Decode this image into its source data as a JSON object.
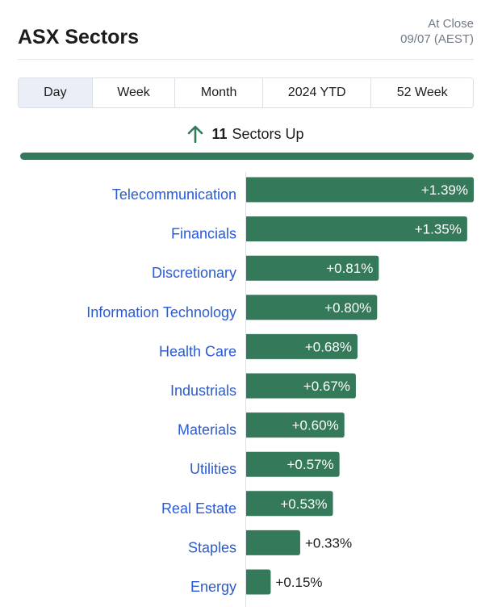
{
  "header": {
    "title": "ASX Sectors",
    "status_line1": "At Close",
    "status_line2": "09/07 (AEST)"
  },
  "tabs": [
    {
      "label": "Day",
      "active": true
    },
    {
      "label": "Week",
      "active": false
    },
    {
      "label": "Month",
      "active": false
    },
    {
      "label": "2024 YTD",
      "active": false
    },
    {
      "label": "52 Week",
      "active": false
    }
  ],
  "summary": {
    "count": "11",
    "label": "Sectors Up",
    "icon": "arrow-up-icon"
  },
  "colors": {
    "bar": "#34795a",
    "category_link": "#2a5bd4",
    "value_inside": "#ffffff",
    "value_outside": "#1c1c1c",
    "axis": "#dcdfe3"
  },
  "chart_data": {
    "type": "bar",
    "orientation": "horizontal",
    "categories": [
      "Telecommunication",
      "Financials",
      "Discretionary",
      "Information Technology",
      "Health Care",
      "Industrials",
      "Materials",
      "Utilities",
      "Real Estate",
      "Staples",
      "Energy"
    ],
    "values": [
      1.39,
      1.35,
      0.81,
      0.8,
      0.68,
      0.67,
      0.6,
      0.57,
      0.53,
      0.33,
      0.15
    ],
    "value_labels": [
      "+1.39%",
      "+1.35%",
      "+0.81%",
      "+0.80%",
      "+0.68%",
      "+0.67%",
      "+0.60%",
      "+0.57%",
      "+0.53%",
      "+0.33%",
      "+0.15%"
    ],
    "xlim": [
      0,
      1.39
    ],
    "grid": false,
    "legend": "none"
  }
}
